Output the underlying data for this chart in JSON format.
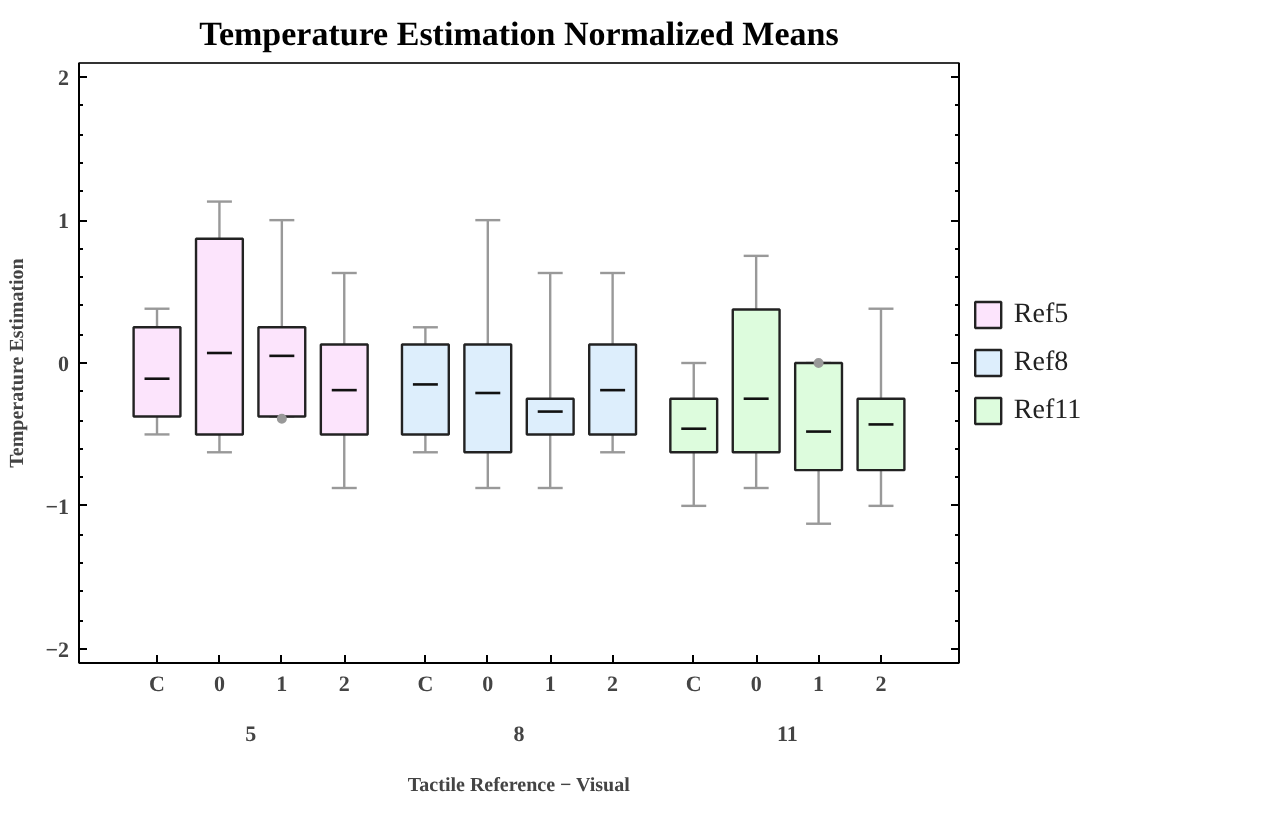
{
  "chart_data": {
    "type": "box",
    "title": "Temperature Estimation Normalized Means",
    "xlabel": "Tactile Reference − Visual",
    "ylabel": "Temperature Estimation",
    "categories": [
      "C",
      "0",
      "1",
      "2",
      "C",
      "0",
      "1",
      "2",
      "C",
      "0",
      "1",
      "2"
    ],
    "annotations": [
      "5",
      "8",
      "11"
    ],
    "series": [
      {
        "name": "Ref5",
        "color": "#fce4fc",
        "boxes": [
          {
            "low": -0.5,
            "q1": -0.375,
            "median": -0.11,
            "q3": 0.25,
            "high": 0.38
          },
          {
            "low": -0.625,
            "q1": -0.5,
            "median": 0.07,
            "q3": 0.87,
            "high": 1.13
          },
          {
            "low": -0.375,
            "q1": -0.375,
            "median": 0.05,
            "q3": 0.25,
            "high": 1.0,
            "outliers": [
              -0.39
            ]
          },
          {
            "low": -0.875,
            "q1": -0.5,
            "median": -0.19,
            "q3": 0.13,
            "high": 0.63
          },
          null,
          null,
          null,
          null,
          null,
          null,
          null,
          null
        ]
      },
      {
        "name": "Ref8",
        "color": "#ddeefc",
        "boxes": [
          null,
          null,
          null,
          null,
          {
            "low": -0.625,
            "q1": -0.5,
            "median": -0.15,
            "q3": 0.13,
            "high": 0.25
          },
          {
            "low": -0.875,
            "q1": -0.625,
            "median": -0.21,
            "q3": 0.13,
            "high": 1.0
          },
          {
            "low": -0.875,
            "q1": -0.5,
            "median": -0.34,
            "q3": -0.25,
            "high": 0.63
          },
          {
            "low": -0.625,
            "q1": -0.5,
            "median": -0.19,
            "q3": 0.13,
            "high": 0.63
          },
          null,
          null,
          null,
          null
        ]
      },
      {
        "name": "Ref11",
        "color": "#ddfcdd",
        "boxes": [
          null,
          null,
          null,
          null,
          null,
          null,
          null,
          null,
          {
            "low": -1.0,
            "q1": -0.625,
            "median": -0.46,
            "q3": -0.25,
            "high": 0.0
          },
          {
            "low": -0.875,
            "q1": -0.625,
            "median": -0.25,
            "q3": 0.375,
            "high": 0.75
          },
          {
            "low": -1.125,
            "q1": -0.75,
            "median": -0.48,
            "q3": 0.0,
            "high": 0.0,
            "outliers": [
              0.0
            ]
          },
          {
            "low": -1.0,
            "q1": -0.75,
            "median": -0.43,
            "q3": -0.25,
            "high": 0.38
          }
        ]
      }
    ],
    "ylim": [
      -2.1,
      2.1
    ],
    "yticks": [
      -2,
      -1,
      0,
      1,
      2
    ],
    "grid": false,
    "legend": "right"
  }
}
